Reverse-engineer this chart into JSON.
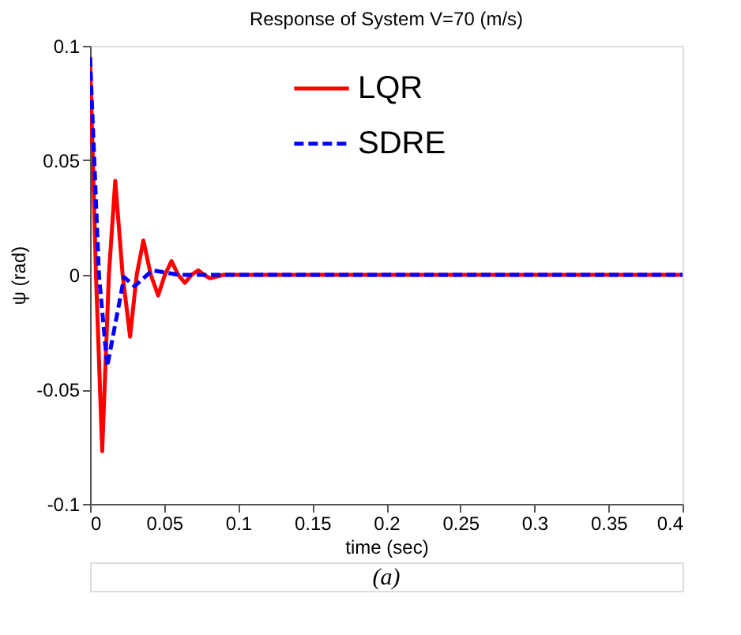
{
  "chart_data": {
    "type": "line",
    "title": "Response of System V=70 (m/s)",
    "xlabel": "time (sec)",
    "ylabel": "ψ (rad)",
    "annotations": [
      "(a)"
    ],
    "xlim": [
      0,
      0.4
    ],
    "xticks": [
      0,
      0.05,
      0.1,
      0.15,
      0.2,
      0.25,
      0.3,
      0.35,
      0.4
    ],
    "ylim": [
      -0.1,
      0.1
    ],
    "yticks": [
      -0.1,
      -0.05,
      0,
      0.05,
      0.1
    ],
    "grid": false,
    "legend": "top",
    "marker": "none",
    "series": [
      {
        "name": "LQR",
        "color": "#ff0000",
        "line_style": "solid",
        "x": [
          0,
          0.004,
          0.0082,
          0.0127,
          0.017,
          0.022,
          0.027,
          0.0315,
          0.036,
          0.041,
          0.046,
          0.0505,
          0.055,
          0.0595,
          0.064,
          0.0685,
          0.073,
          0.077,
          0.081,
          0.09,
          0.1,
          0.4
        ],
        "values": [
          0.095,
          0.0,
          -0.077,
          0.0,
          0.041,
          0.0,
          -0.027,
          0.0,
          0.015,
          0.0,
          -0.009,
          0.0,
          0.006,
          0.0,
          -0.0035,
          0.0,
          0.002,
          0.0,
          -0.0015,
          0.0,
          0.0,
          0.0
        ]
      },
      {
        "name": "SDRE",
        "color": "#0000ff",
        "line_style": "dashed",
        "x": [
          0,
          0.006,
          0.0116,
          0.023,
          0.03,
          0.042,
          0.06,
          0.4
        ],
        "values": [
          0.095,
          0.0,
          -0.04,
          -0.001,
          -0.005,
          0.002,
          0.0,
          0.0
        ]
      }
    ]
  }
}
